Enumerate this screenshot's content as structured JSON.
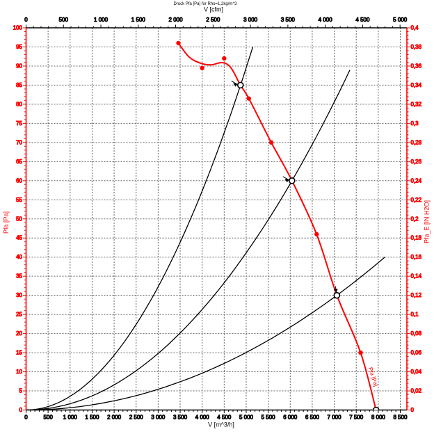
{
  "page": {
    "background": "#ffffff"
  },
  "chart_data": {
    "type": "line",
    "title": "Druck Pfa [Pa] for Rho=1,2kg/m^3",
    "grid": {
      "style": "dashed",
      "color": "#4a4a4a",
      "x_step_m3h": 500,
      "y_step_pa": 5
    },
    "axes": {
      "top": {
        "label": "V [cfm]",
        "min": 0,
        "max": 5000,
        "major_step": 500,
        "minor_step": 100,
        "unit_scale_to_m3h": 1.699,
        "color": "#000000",
        "tick_labels": [
          "0",
          "500",
          "1 000",
          "1 500",
          "2 000",
          "2 500",
          "3 000",
          "3 500",
          "4 000",
          "4 500",
          "5 000"
        ]
      },
      "bottom": {
        "label": "V [m^3/h]",
        "min": 0,
        "max": 8500,
        "major_step": 500,
        "minor_step": 100,
        "color": "#000000",
        "tick_labels": [
          "0",
          "500",
          "1 000",
          "1 500",
          "2 000",
          "2 500",
          "3 000",
          "3 500",
          "4 000",
          "4 500",
          "5 000",
          "5 500",
          "6 000",
          "6 500",
          "7 000",
          "7 500",
          "8 000",
          "8 500"
        ]
      },
      "left": {
        "label": "Pfa [Pa]",
        "min": 0,
        "max": 100,
        "major_step": 5,
        "minor_step": 1,
        "color": "#ff0000",
        "tick_labels": [
          "0",
          "5",
          "10",
          "15",
          "20",
          "25",
          "30",
          "35",
          "40",
          "45",
          "50",
          "55",
          "60",
          "65",
          "70",
          "75",
          "80",
          "85",
          "90",
          "95",
          "100"
        ]
      },
      "right": {
        "label": "Pfa_E [IN H2O]",
        "min": 0,
        "max": 0.4,
        "major_step": 0.02,
        "minor_step": 0.004,
        "color": "#ff0000",
        "tick_labels": [
          "0",
          "0,02",
          "0,04",
          "0,06",
          "0,08",
          "0,1",
          "0,12",
          "0,14",
          "0,16",
          "0,18",
          "0,2",
          "0,22",
          "0,24",
          "0,26",
          "0,28",
          "0,3",
          "0,32",
          "0,34",
          "0,36",
          "0,38",
          "0,4"
        ]
      }
    },
    "series": [
      {
        "name": "fan-curve",
        "label": "Pfa [Pa]",
        "color": "#ff0000",
        "width": 2,
        "points_m3h_pa": [
          [
            3460,
            96
          ],
          [
            3700,
            92.4
          ],
          [
            3950,
            90.8
          ],
          [
            4200,
            90.3
          ],
          [
            4450,
            90.9
          ],
          [
            4650,
            89.6
          ],
          [
            4870,
            85
          ],
          [
            5060,
            81.5
          ],
          [
            5570,
            70
          ],
          [
            6040,
            60
          ],
          [
            6600,
            46
          ],
          [
            7060,
            30
          ],
          [
            7600,
            15
          ],
          [
            7950,
            0
          ]
        ]
      }
    ],
    "measured_points": {
      "color": "#ff0000",
      "radius": 3.2,
      "points_m3h_pa": [
        [
          3460,
          96
        ],
        [
          4000,
          89.5
        ],
        [
          4500,
          92
        ],
        [
          5060,
          81.5
        ],
        [
          5570,
          70
        ],
        [
          6600,
          46
        ],
        [
          7600,
          15
        ]
      ]
    },
    "operating_points": {
      "stroke": "#000000",
      "fill": "#ffffff",
      "radius": 4,
      "points_m3h_pa": [
        [
          4870,
          85
        ],
        [
          6040,
          60
        ],
        [
          7060,
          30
        ],
        [
          7950,
          0
        ]
      ]
    },
    "pointer_arrows": {
      "color": "#000000",
      "items": [
        {
          "at_m3h_pa": [
            4870,
            85
          ],
          "dir": "e"
        },
        {
          "at_m3h_pa": [
            6040,
            60
          ],
          "dir": "e"
        },
        {
          "at_m3h_pa": [
            7060,
            30
          ],
          "dir": "s"
        }
      ]
    },
    "system_curves": {
      "color": "#000000",
      "width": 1.3,
      "curves": [
        {
          "v_end": 5150,
          "p_end": 95
        },
        {
          "v_end": 7480,
          "p_end": 92
        },
        {
          "v_end": 8150,
          "p_end": 40
        }
      ]
    },
    "curve_label": {
      "text": "Pfa [Pa]",
      "color": "#ff0000",
      "angle_deg": 72
    }
  }
}
